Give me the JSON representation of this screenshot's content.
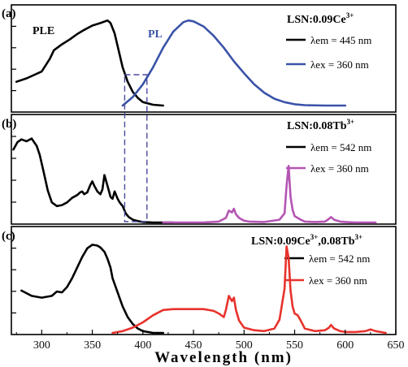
{
  "chart_data": {
    "type": "line",
    "xlabel": "Wavelength (nm)",
    "xlim": [
      270,
      650
    ],
    "x_ticks": [
      "300",
      "350",
      "400",
      "450",
      "500",
      "550",
      "600",
      "650"
    ],
    "panels": [
      {
        "tag": "(a)",
        "title": "LSN:0.09Ce",
        "title_sup": "3+",
        "annotations": [
          "PLE",
          "PL"
        ],
        "legend_position": "top-right",
        "ylim": [
          0,
          1.05
        ],
        "series": [
          {
            "name": "λem = 445 nm",
            "color": "#000000",
            "x": [
              275,
              285,
              300,
              308,
              312,
              320,
              328,
              335,
              342,
              350,
              358,
              365,
              368,
              372,
              375,
              380,
              385,
              390,
              395,
              400,
              410,
              420
            ],
            "y": [
              0.28,
              0.32,
              0.4,
              0.55,
              0.65,
              0.72,
              0.78,
              0.84,
              0.89,
              0.94,
              0.97,
              1.0,
              0.97,
              0.85,
              0.7,
              0.45,
              0.28,
              0.16,
              0.09,
              0.04,
              0.01,
              0.0
            ]
          },
          {
            "name": "λex = 360 nm",
            "color": "#3a53a8",
            "x": [
              380,
              390,
              400,
              410,
              420,
              430,
              440,
              445,
              450,
              460,
              470,
              480,
              490,
              500,
              510,
              520,
              530,
              540,
              550,
              560,
              580,
              600
            ],
            "y": [
              0.0,
              0.1,
              0.25,
              0.45,
              0.68,
              0.87,
              0.98,
              1.0,
              0.99,
              0.93,
              0.82,
              0.68,
              0.52,
              0.38,
              0.25,
              0.15,
              0.08,
              0.04,
              0.015,
              0.005,
              0.0,
              0.0
            ]
          }
        ]
      },
      {
        "tag": "(b)",
        "title": "LSN:0.08Tb",
        "title_sup": "3+",
        "legend_position": "top-right",
        "ylim": [
          0,
          1.05
        ],
        "series": [
          {
            "name": "λem = 542 nm",
            "color": "#000000",
            "x": [
              272,
              276,
              280,
              285,
              290,
              295,
              298,
              302,
              306,
              310,
              315,
              320,
              325,
              330,
              335,
              338,
              340,
              342,
              345,
              348,
              350,
              352,
              355,
              358,
              360,
              362,
              365,
              368,
              370,
              372,
              375,
              377,
              380,
              383,
              386,
              390,
              395,
              400,
              410,
              420,
              430
            ],
            "y": [
              0.8,
              0.88,
              0.91,
              0.89,
              0.92,
              0.84,
              0.74,
              0.55,
              0.35,
              0.22,
              0.18,
              0.19,
              0.22,
              0.27,
              0.3,
              0.33,
              0.34,
              0.31,
              0.33,
              0.41,
              0.45,
              0.4,
              0.34,
              0.31,
              0.36,
              0.52,
              0.4,
              0.28,
              0.26,
              0.34,
              0.26,
              0.22,
              0.18,
              0.1,
              0.06,
              0.03,
              0.015,
              0.005,
              0.0,
              0.0,
              0.0
            ]
          },
          {
            "name": "λex = 360 nm",
            "color": "#b455b4",
            "x": [
              420,
              460,
              475,
              482,
              485,
              488,
              490,
              492,
              495,
              500,
              505,
              520,
              535,
              540,
              542,
              544,
              546,
              548,
              550,
              553,
              556,
              560,
              570,
              580,
              584,
              586,
              589,
              595,
              600,
              610,
              620,
              630
            ],
            "y": [
              0.0,
              0.0,
              0.01,
              0.05,
              0.13,
              0.11,
              0.15,
              0.09,
              0.05,
              0.02,
              0.01,
              0.005,
              0.03,
              0.1,
              0.4,
              0.62,
              0.28,
              0.14,
              0.07,
              0.05,
              0.03,
              0.01,
              0.005,
              0.01,
              0.04,
              0.06,
              0.03,
              0.01,
              0.005,
              0.0,
              0.0,
              0.0
            ]
          }
        ]
      },
      {
        "tag": "(c)",
        "title": "LSN:0.09Ce",
        "title_sup": "3+",
        "title_rest": ",0.08Tb",
        "title_sup2": "3+",
        "legend_position": "top-right",
        "ylim": [
          0,
          1.05
        ],
        "series": [
          {
            "name": "λem = 542 nm",
            "color": "#000000",
            "x": [
              280,
              290,
              300,
              310,
              315,
              320,
              325,
              330,
              335,
              340,
              345,
              350,
              355,
              358,
              362,
              365,
              368,
              370,
              375,
              380,
              385,
              390,
              395,
              400,
              410,
              420
            ],
            "y": [
              0.48,
              0.42,
              0.4,
              0.42,
              0.47,
              0.46,
              0.52,
              0.62,
              0.74,
              0.86,
              0.96,
              1.0,
              0.99,
              0.97,
              0.92,
              0.84,
              0.74,
              0.62,
              0.46,
              0.3,
              0.18,
              0.1,
              0.05,
              0.02,
              0.0,
              0.0
            ]
          },
          {
            "name": "λex = 360 nm",
            "color": "#e8322c",
            "x": [
              370,
              380,
              390,
              400,
              410,
              420,
              430,
              440,
              460,
              470,
              475,
              480,
              482,
              485,
              488,
              490,
              492,
              495,
              500,
              510,
              520,
              530,
              535,
              540,
              542,
              544,
              546,
              548,
              550,
              553,
              556,
              560,
              570,
              580,
              584,
              586,
              589,
              595,
              600,
              610,
              620,
              625,
              630,
              640
            ],
            "y": [
              0.0,
              0.02,
              0.06,
              0.12,
              0.2,
              0.26,
              0.27,
              0.27,
              0.27,
              0.25,
              0.22,
              0.18,
              0.26,
              0.42,
              0.36,
              0.4,
              0.26,
              0.14,
              0.06,
              0.03,
              0.02,
              0.05,
              0.15,
              0.5,
              0.98,
              0.85,
              0.48,
              0.3,
              0.22,
              0.2,
              0.14,
              0.05,
              0.02,
              0.03,
              0.06,
              0.09,
              0.05,
              0.02,
              0.01,
              0.01,
              0.02,
              0.04,
              0.02,
              0.0
            ]
          }
        ]
      }
    ]
  }
}
